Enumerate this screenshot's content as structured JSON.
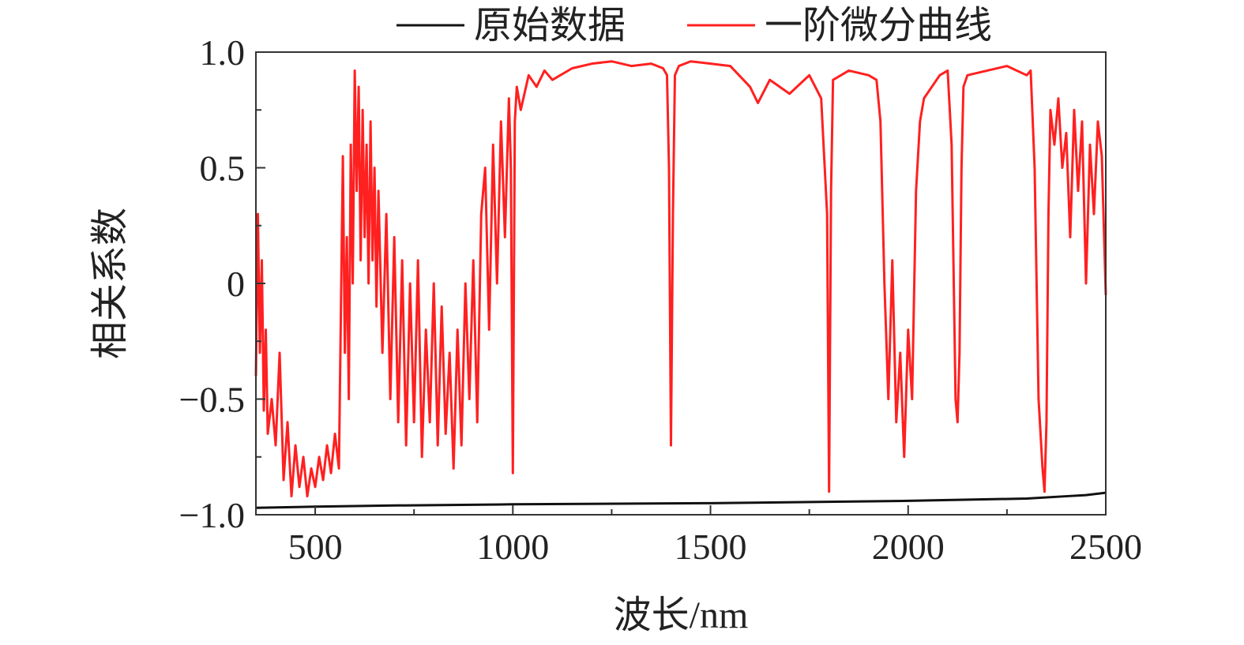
{
  "chart_data": {
    "type": "line",
    "xlabel": "波长/nm",
    "ylabel": "相关系数",
    "xlim": [
      350,
      2500
    ],
    "ylim": [
      -1.0,
      1.0
    ],
    "x_ticks": [
      500,
      1000,
      1500,
      2000,
      2500
    ],
    "x_tick_labels": [
      "500",
      "1000",
      "1500",
      "2000",
      "2500"
    ],
    "y_ticks": [
      -1.0,
      -0.5,
      0,
      0.5,
      1.0
    ],
    "y_tick_labels": [
      "−1.0",
      "−0.5",
      "0",
      "0.5",
      "1.0"
    ],
    "grid": false,
    "legend_position": "top",
    "series": [
      {
        "name": "原始数据",
        "color": "#111111",
        "x": [
          350,
          500,
          700,
          1000,
          1500,
          2000,
          2300,
          2400,
          2450,
          2500
        ],
        "y": [
          -0.97,
          -0.965,
          -0.96,
          -0.955,
          -0.95,
          -0.94,
          -0.93,
          -0.92,
          -0.915,
          -0.905
        ]
      },
      {
        "name": "一阶微分曲线",
        "color": "#ff2020",
        "x": [
          350,
          355,
          360,
          365,
          370,
          375,
          380,
          390,
          400,
          410,
          420,
          430,
          440,
          450,
          460,
          470,
          480,
          490,
          500,
          510,
          520,
          530,
          540,
          550,
          560,
          570,
          575,
          580,
          585,
          590,
          595,
          600,
          605,
          610,
          615,
          620,
          625,
          630,
          635,
          640,
          645,
          650,
          655,
          660,
          670,
          680,
          690,
          700,
          710,
          720,
          730,
          740,
          750,
          760,
          770,
          780,
          790,
          800,
          810,
          820,
          830,
          840,
          850,
          860,
          870,
          880,
          890,
          900,
          910,
          920,
          930,
          940,
          950,
          960,
          970,
          980,
          990,
          995,
          1000,
          1005,
          1010,
          1020,
          1040,
          1060,
          1080,
          1100,
          1150,
          1200,
          1250,
          1300,
          1350,
          1380,
          1390,
          1395,
          1400,
          1405,
          1410,
          1420,
          1450,
          1500,
          1550,
          1600,
          1620,
          1650,
          1700,
          1750,
          1780,
          1795,
          1800,
          1805,
          1810,
          1850,
          1900,
          1920,
          1930,
          1940,
          1950,
          1960,
          1970,
          1980,
          1990,
          2000,
          2010,
          2020,
          2030,
          2040,
          2060,
          2080,
          2100,
          2110,
          2120,
          2125,
          2130,
          2135,
          2140,
          2150,
          2200,
          2250,
          2300,
          2310,
          2320,
          2330,
          2340,
          2345,
          2350,
          2355,
          2360,
          2370,
          2380,
          2390,
          2400,
          2410,
          2420,
          2430,
          2440,
          2450,
          2460,
          2470,
          2480,
          2490,
          2500
        ],
        "y": [
          -0.4,
          0.3,
          -0.3,
          0.1,
          -0.55,
          -0.2,
          -0.65,
          -0.5,
          -0.7,
          -0.3,
          -0.85,
          -0.6,
          -0.92,
          -0.7,
          -0.88,
          -0.75,
          -0.92,
          -0.8,
          -0.88,
          -0.75,
          -0.85,
          -0.7,
          -0.82,
          -0.65,
          -0.8,
          0.55,
          -0.3,
          0.2,
          -0.5,
          0.6,
          0.0,
          0.92,
          0.4,
          0.85,
          0.1,
          0.75,
          0.2,
          0.6,
          0.0,
          0.7,
          0.1,
          0.5,
          -0.1,
          0.4,
          -0.3,
          0.3,
          -0.5,
          0.2,
          -0.6,
          0.1,
          -0.7,
          0.0,
          -0.6,
          0.1,
          -0.75,
          -0.2,
          -0.6,
          0.0,
          -0.7,
          -0.1,
          -0.65,
          -0.3,
          -0.8,
          -0.2,
          -0.7,
          0.0,
          -0.5,
          0.1,
          -0.6,
          0.3,
          0.5,
          -0.2,
          0.6,
          0.0,
          0.7,
          0.2,
          0.8,
          0.5,
          -0.82,
          0.7,
          0.85,
          0.75,
          0.9,
          0.85,
          0.92,
          0.88,
          0.93,
          0.95,
          0.96,
          0.94,
          0.95,
          0.93,
          0.9,
          0.5,
          -0.7,
          0.3,
          0.9,
          0.94,
          0.96,
          0.95,
          0.94,
          0.85,
          0.78,
          0.88,
          0.82,
          0.9,
          0.8,
          0.3,
          -0.9,
          0.4,
          0.88,
          0.92,
          0.9,
          0.88,
          0.7,
          0.0,
          -0.5,
          0.1,
          -0.6,
          -0.3,
          -0.75,
          -0.2,
          -0.5,
          0.4,
          0.7,
          0.8,
          0.85,
          0.9,
          0.92,
          0.6,
          -0.5,
          -0.6,
          -0.3,
          0.5,
          0.85,
          0.9,
          0.92,
          0.94,
          0.9,
          0.92,
          0.5,
          -0.5,
          -0.8,
          -0.9,
          -0.6,
          0.3,
          0.75,
          0.6,
          0.8,
          0.5,
          0.65,
          0.2,
          0.75,
          0.4,
          0.7,
          0.0,
          0.6,
          0.3,
          0.7,
          0.55,
          -0.05
        ]
      }
    ]
  }
}
